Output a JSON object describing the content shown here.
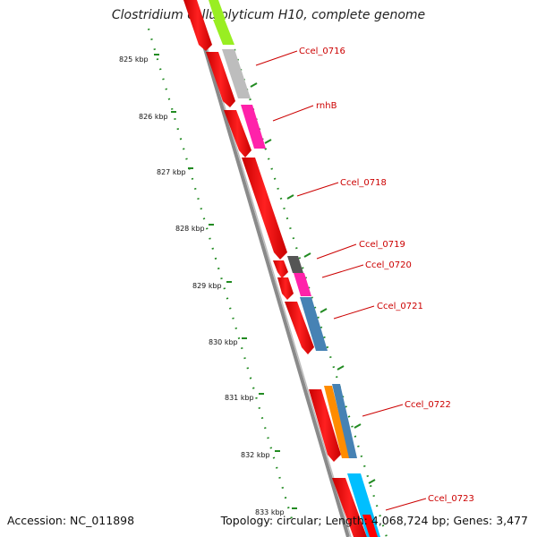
{
  "title": "Clostridium cellulolyticum H10, complete genome",
  "footer": {
    "accession": "Accession: NC_011898",
    "summary": "Topology: circular; Length: 4,068,724 bp; Genes: 3,477"
  },
  "ruler_labels": [
    "825 kbp",
    "826 kbp",
    "827 kbp",
    "828 kbp",
    "829 kbp",
    "830 kbp",
    "831 kbp",
    "832 kbp",
    "833 kbp"
  ],
  "gene_labels": [
    "Ccel_0716",
    "rnhB",
    "Ccel_0718",
    "Ccel_0719",
    "Ccel_0720",
    "Ccel_0721",
    "Ccel_0722",
    "Ccel_0723"
  ],
  "colors": {
    "cds": "#ff0000",
    "tick": "#228b22",
    "backbone": "#888888",
    "label": "#cc0000"
  }
}
